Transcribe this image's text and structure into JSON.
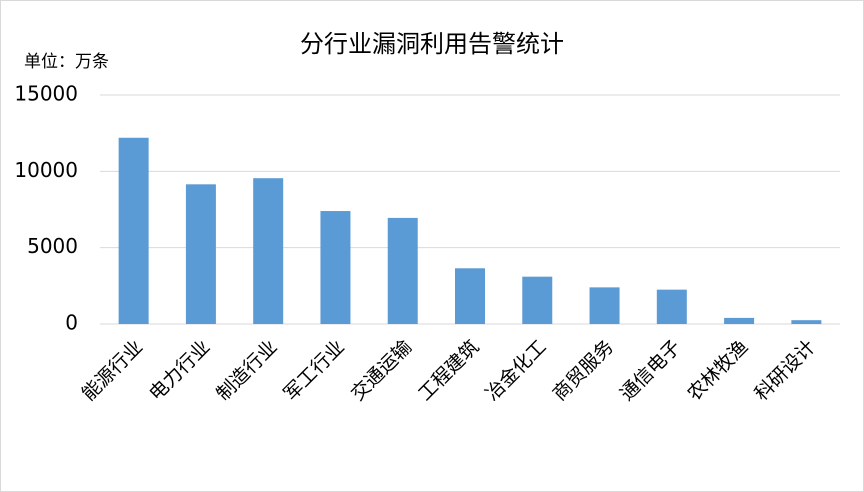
{
  "chart_data": {
    "type": "bar",
    "title": "分行业漏洞利用告警统计",
    "unit_label": "单位：万条",
    "categories": [
      "能源行业",
      "电力行业",
      "制造行业",
      "军工行业",
      "交通运输",
      "工程建筑",
      "冶金化工",
      "商贸服务",
      "通信电子",
      "农林牧渔",
      "科研设计"
    ],
    "values": [
      12200,
      9150,
      9550,
      7400,
      6950,
      3650,
      3100,
      2400,
      2250,
      400,
      250
    ],
    "color": "#5b9bd5",
    "ylim": [
      0,
      15000
    ],
    "yticks": [
      0,
      5000,
      10000,
      15000
    ],
    "grid": true
  }
}
